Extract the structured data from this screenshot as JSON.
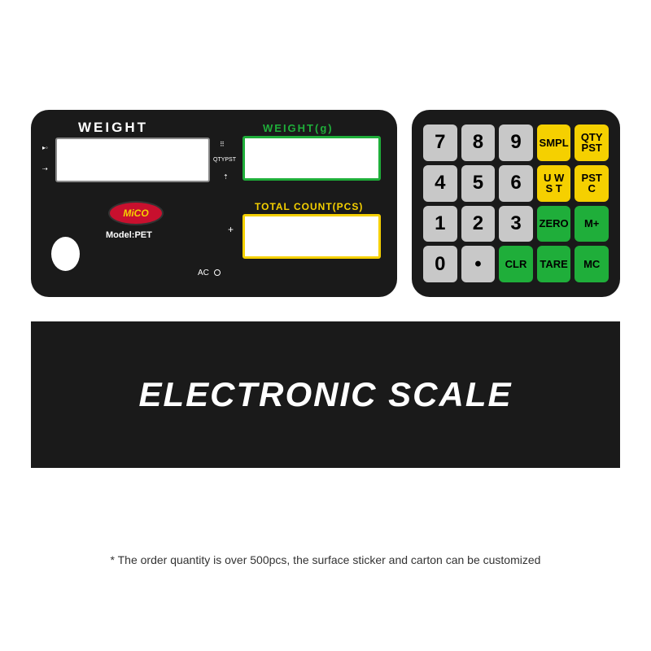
{
  "display_panel": {
    "weight_label": "WEIGHT",
    "weight_g_label": "WEIGHT(g)",
    "count_label": "TOTAL COUNT(PCS)",
    "logo_text": "MiCO",
    "model_label": "Model:PET",
    "ac_label": "AC",
    "qtypst_label": "QTYPST",
    "plus_label": "+",
    "colors": {
      "panel_bg": "#1a1a1a",
      "weight_g_border": "#1fae3a",
      "count_border": "#f5d000",
      "logo_bg": "#c8102e",
      "logo_text": "#f5d000"
    }
  },
  "keypad": {
    "colors": {
      "panel_bg": "#1a1a1a",
      "num_bg": "#c8c8c8",
      "yellow_bg": "#f5d000",
      "green_bg": "#1fae3a"
    },
    "keys": [
      {
        "label": "7",
        "type": "num"
      },
      {
        "label": "8",
        "type": "num"
      },
      {
        "label": "9",
        "type": "num"
      },
      {
        "label": "SMPL",
        "type": "yellow"
      },
      {
        "label_line1": "QTY",
        "label_line2": "PST",
        "type": "yellow",
        "multi": true
      },
      {
        "label": "4",
        "type": "num"
      },
      {
        "label": "5",
        "type": "num"
      },
      {
        "label": "6",
        "type": "num"
      },
      {
        "label_line1": "U W",
        "label_line2": "S T",
        "type": "yellow",
        "multi": true
      },
      {
        "label_line1": "PST",
        "label_line2": "C",
        "type": "yellow",
        "multi": true
      },
      {
        "label": "1",
        "type": "num"
      },
      {
        "label": "2",
        "type": "num"
      },
      {
        "label": "3",
        "type": "num"
      },
      {
        "label": "ZERO",
        "type": "green"
      },
      {
        "label": "M+",
        "type": "green"
      },
      {
        "label": "0",
        "type": "num"
      },
      {
        "label": "•",
        "type": "num"
      },
      {
        "label": "CLR",
        "type": "green"
      },
      {
        "label": "TARE",
        "type": "green"
      },
      {
        "label": "MC",
        "type": "green"
      }
    ]
  },
  "banner": {
    "text": "ELECTRONIC SCALE",
    "bg_color": "#1a1a1a",
    "text_color": "#ffffff"
  },
  "footnote": "* The order quantity is over 500pcs, the surface sticker and carton can be customized"
}
